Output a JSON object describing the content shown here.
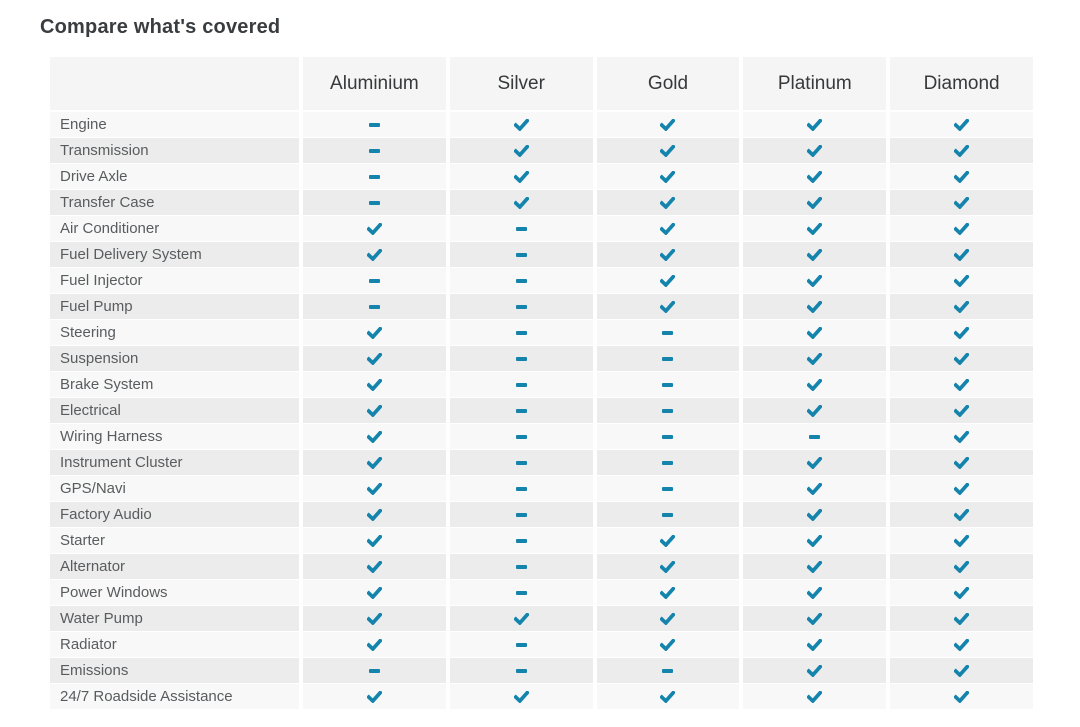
{
  "accent_color": "#1484ac",
  "page": {
    "title": "Compare what's covered"
  },
  "table": {
    "plans": [
      "Aluminium",
      "Silver",
      "Gold",
      "Platinum",
      "Diamond"
    ],
    "icons": {
      "covered": "check-icon",
      "not_covered": "dash-icon"
    },
    "rows": [
      {
        "label": "Engine",
        "covered": [
          false,
          true,
          true,
          true,
          true
        ]
      },
      {
        "label": "Transmission",
        "covered": [
          false,
          true,
          true,
          true,
          true
        ]
      },
      {
        "label": "Drive Axle",
        "covered": [
          false,
          true,
          true,
          true,
          true
        ]
      },
      {
        "label": "Transfer Case",
        "covered": [
          false,
          true,
          true,
          true,
          true
        ]
      },
      {
        "label": "Air Conditioner",
        "covered": [
          true,
          false,
          true,
          true,
          true
        ]
      },
      {
        "label": "Fuel Delivery System",
        "covered": [
          true,
          false,
          true,
          true,
          true
        ]
      },
      {
        "label": "Fuel Injector",
        "covered": [
          false,
          false,
          true,
          true,
          true
        ]
      },
      {
        "label": "Fuel Pump",
        "covered": [
          false,
          false,
          true,
          true,
          true
        ]
      },
      {
        "label": "Steering",
        "covered": [
          true,
          false,
          false,
          true,
          true
        ]
      },
      {
        "label": "Suspension",
        "covered": [
          true,
          false,
          false,
          true,
          true
        ]
      },
      {
        "label": "Brake System",
        "covered": [
          true,
          false,
          false,
          true,
          true
        ]
      },
      {
        "label": "Electrical",
        "covered": [
          true,
          false,
          false,
          true,
          true
        ]
      },
      {
        "label": "Wiring Harness",
        "covered": [
          true,
          false,
          false,
          false,
          true
        ]
      },
      {
        "label": "Instrument Cluster",
        "covered": [
          true,
          false,
          false,
          true,
          true
        ]
      },
      {
        "label": "GPS/Navi",
        "covered": [
          true,
          false,
          false,
          true,
          true
        ]
      },
      {
        "label": "Factory Audio",
        "covered": [
          true,
          false,
          false,
          true,
          true
        ]
      },
      {
        "label": "Starter",
        "covered": [
          true,
          false,
          true,
          true,
          true
        ]
      },
      {
        "label": "Alternator",
        "covered": [
          true,
          false,
          true,
          true,
          true
        ]
      },
      {
        "label": "Power Windows",
        "covered": [
          true,
          false,
          true,
          true,
          true
        ]
      },
      {
        "label": "Water Pump",
        "covered": [
          true,
          true,
          true,
          true,
          true
        ]
      },
      {
        "label": "Radiator",
        "covered": [
          true,
          false,
          true,
          true,
          true
        ]
      },
      {
        "label": "Emissions",
        "covered": [
          false,
          false,
          false,
          true,
          true
        ]
      },
      {
        "label": "24/7 Roadside Assistance",
        "covered": [
          true,
          true,
          true,
          true,
          true
        ]
      }
    ]
  }
}
